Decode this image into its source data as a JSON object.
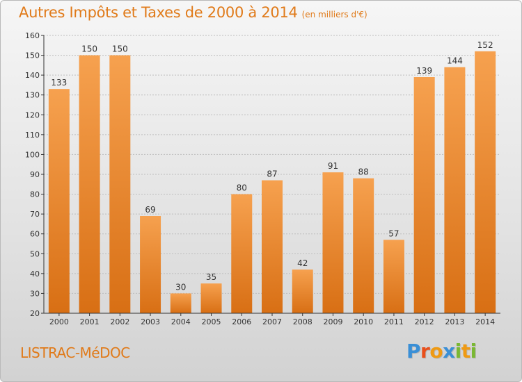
{
  "title": "Autres Impôts et Taxes de 2000 à 2014",
  "subtitle": "(en milliers d'€)",
  "commune": "LISTRAC-MéDOC",
  "logo": {
    "letters": [
      "P",
      "r",
      "o",
      "x",
      "i",
      "t",
      "i"
    ],
    "colors": [
      "#3a8fd6",
      "#e94f1b",
      "#ef9a13",
      "#3a8fd6",
      "#7ab833",
      "#ef9a13",
      "#7ab833"
    ]
  },
  "colors": {
    "bar_light": "#f6a14f",
    "bar_dark": "#d86f14",
    "axis": "#333333",
    "grid": "#bdbdbd",
    "accent": "#e07a19"
  },
  "chart_data": {
    "type": "bar",
    "title": "Autres Impôts et Taxes de 2000 à 2014",
    "subtitle": "(en milliers d'€)",
    "xlabel": "",
    "ylabel": "",
    "ylim": [
      20,
      160
    ],
    "yticks": [
      20,
      30,
      40,
      50,
      60,
      70,
      80,
      90,
      100,
      110,
      120,
      130,
      140,
      150,
      160
    ],
    "grid": true,
    "categories": [
      "2000",
      "2001",
      "2002",
      "2003",
      "2004",
      "2005",
      "2006",
      "2007",
      "2008",
      "2009",
      "2010",
      "2011",
      "2012",
      "2013",
      "2014"
    ],
    "values": [
      133,
      150,
      150,
      69,
      30,
      35,
      80,
      87,
      42,
      91,
      88,
      57,
      139,
      144,
      152
    ]
  }
}
